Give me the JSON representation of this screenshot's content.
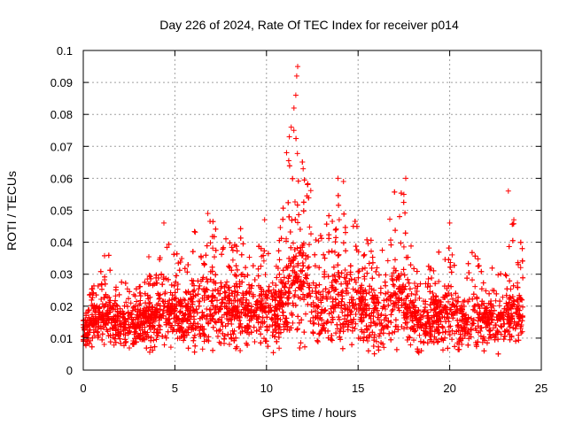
{
  "chart_data": {
    "type": "scatter",
    "title": "Day 226 of 2024, Rate Of TEC Index for receiver p014",
    "xlabel": "GPS time / hours",
    "ylabel": "ROTI / TECUs",
    "xlim": [
      0,
      25
    ],
    "ylim": [
      0,
      0.1
    ],
    "x_ticks": [
      0,
      5,
      10,
      15,
      20,
      25
    ],
    "x_tick_labels": [
      "0",
      "5",
      "10",
      "15",
      "20",
      "25"
    ],
    "y_ticks": [
      0,
      0.01,
      0.02,
      0.03,
      0.04,
      0.05,
      0.06,
      0.07,
      0.08,
      0.09,
      0.1
    ],
    "y_tick_labels": [
      "0",
      "0.01",
      "0.02",
      "0.03",
      "0.04",
      "0.05",
      "0.06",
      "0.07",
      "0.08",
      "0.09",
      "0.1"
    ],
    "grid": true,
    "marker": "+",
    "series": [
      {
        "name": "ROTI",
        "color": "#ff0000",
        "envelope": {
          "description": "dense band of ROTI samples; upper envelope approximated",
          "x": [
            0,
            0.5,
            1,
            1.5,
            2,
            2.5,
            3,
            3.5,
            4,
            4.5,
            5,
            5.5,
            6,
            6.5,
            7,
            7.5,
            8,
            8.5,
            9,
            9.5,
            10,
            10.5,
            11,
            11.5,
            12,
            12.5,
            13,
            13.5,
            14,
            14.5,
            15,
            15.5,
            16,
            16.5,
            17,
            17.5,
            18,
            18.5,
            19,
            19.5,
            20,
            20.5,
            21,
            21.5,
            22,
            22.5,
            23,
            23.5,
            24
          ],
          "upper": [
            0.02,
            0.026,
            0.035,
            0.038,
            0.028,
            0.027,
            0.025,
            0.038,
            0.035,
            0.046,
            0.038,
            0.037,
            0.044,
            0.042,
            0.048,
            0.043,
            0.041,
            0.046,
            0.04,
            0.038,
            0.047,
            0.036,
            0.06,
            0.082,
            0.078,
            0.055,
            0.044,
            0.05,
            0.06,
            0.043,
            0.05,
            0.041,
            0.043,
            0.037,
            0.06,
            0.055,
            0.035,
            0.031,
            0.035,
            0.038,
            0.045,
            0.033,
            0.034,
            0.042,
            0.032,
            0.033,
            0.034,
            0.048,
            0.04
          ],
          "lower": [
            0.006,
            0.007,
            0.007,
            0.006,
            0.006,
            0.006,
            0.005,
            0.005,
            0.005,
            0.006,
            0.006,
            0.006,
            0.005,
            0.006,
            0.005,
            0.005,
            0.006,
            0.006,
            0.005,
            0.005,
            0.005,
            0.005,
            0.006,
            0.006,
            0.006,
            0.005,
            0.005,
            0.005,
            0.005,
            0.005,
            0.005,
            0.005,
            0.005,
            0.005,
            0.005,
            0.005,
            0.006,
            0.005,
            0.005,
            0.005,
            0.005,
            0.005,
            0.005,
            0.005,
            0.005,
            0.005,
            0.005,
            0.005,
            0.006
          ],
          "typical": [
            0.012,
            0.014,
            0.016,
            0.016,
            0.014,
            0.013,
            0.013,
            0.016,
            0.016,
            0.018,
            0.017,
            0.017,
            0.018,
            0.018,
            0.019,
            0.018,
            0.018,
            0.019,
            0.018,
            0.017,
            0.019,
            0.017,
            0.022,
            0.028,
            0.026,
            0.02,
            0.018,
            0.019,
            0.021,
            0.017,
            0.019,
            0.017,
            0.018,
            0.016,
            0.021,
            0.02,
            0.016,
            0.014,
            0.015,
            0.016,
            0.017,
            0.015,
            0.015,
            0.016,
            0.014,
            0.015,
            0.015,
            0.017,
            0.016
          ]
        },
        "notable_points": [
          {
            "x": 11.7,
            "y": 0.095
          },
          {
            "x": 11.65,
            "y": 0.092
          },
          {
            "x": 11.6,
            "y": 0.086
          },
          {
            "x": 11.5,
            "y": 0.082
          },
          {
            "x": 11.35,
            "y": 0.076
          },
          {
            "x": 11.25,
            "y": 0.073
          },
          {
            "x": 11.1,
            "y": 0.068
          },
          {
            "x": 12.0,
            "y": 0.063
          },
          {
            "x": 13.9,
            "y": 0.06
          },
          {
            "x": 14.2,
            "y": 0.059
          },
          {
            "x": 17.6,
            "y": 0.06
          },
          {
            "x": 17.5,
            "y": 0.055
          },
          {
            "x": 23.2,
            "y": 0.056
          },
          {
            "x": 23.5,
            "y": 0.047
          },
          {
            "x": 6.8,
            "y": 0.049
          },
          {
            "x": 20.0,
            "y": 0.046
          },
          {
            "x": 4.4,
            "y": 0.046
          },
          {
            "x": 9.9,
            "y": 0.047
          }
        ]
      }
    ]
  }
}
